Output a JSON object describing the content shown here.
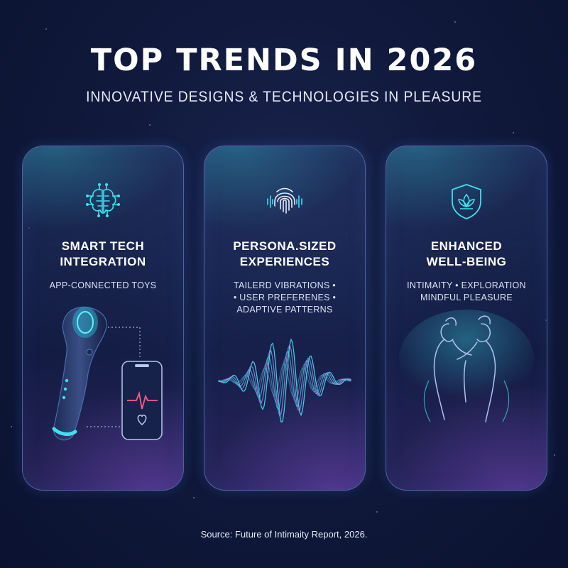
{
  "header": {
    "title": "TOP TRENDS IN 2026",
    "subtitle": "INNOVATIVE DESIGNS & TECHNOLOGIES IN PLEASURE"
  },
  "cards": [
    {
      "icon": "brain-circuit-icon",
      "title_lines": [
        "SMART TECH",
        "INTEGRATION"
      ],
      "sub_lines": [
        "APP-CONNECTED TOYS"
      ]
    },
    {
      "icon": "fingerprint-wave-icon",
      "title_lines": [
        "PERSONA.SIZED",
        "EXPERIENCES"
      ],
      "sub_lines": [
        "TAILERD VIBRATIONS •",
        "• USER PREFERENES •",
        "ADAPTIVE PATTERNS"
      ]
    },
    {
      "icon": "lotus-shield-icon",
      "title_lines": [
        "ENHANCED",
        "WELL-BEING"
      ],
      "sub_lines": [
        "INTIMAITY • EXPLORATION",
        "MINDFUL PLEASURE"
      ]
    }
  ],
  "footer": {
    "source": "Source: Future of Intimaity Report, 2026."
  },
  "colors": {
    "background": "#111a3d",
    "accent_cyan": "#3fe0f0",
    "accent_purple": "#9a6cf0",
    "card_border": "#8caaff"
  }
}
